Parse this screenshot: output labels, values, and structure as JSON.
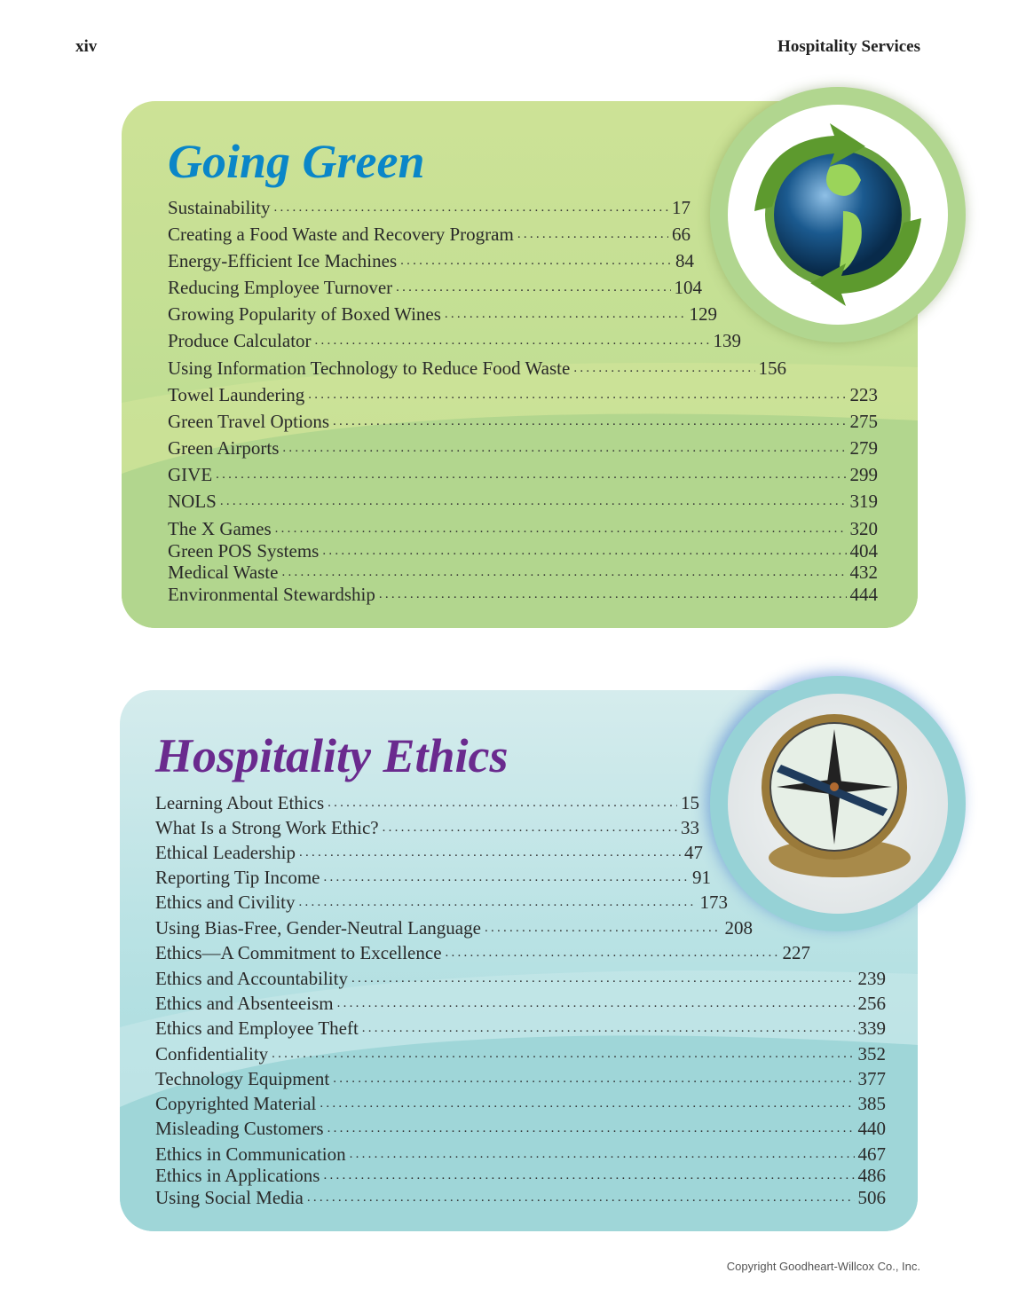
{
  "header": {
    "page_number": "xiv",
    "book_title": "Hospitality Services"
  },
  "going_green": {
    "title": "Going Green",
    "title_color": "#0a86c8",
    "image": "globe-with-recycling-arrows",
    "entries": [
      {
        "label": "Sustainability",
        "page": "17"
      },
      {
        "label": "Creating a Food Waste and Recovery Program",
        "page": "66"
      },
      {
        "label": "Energy-Efficient Ice Machines",
        "page": "84"
      },
      {
        "label": "Reducing Employee Turnover",
        "page": "104"
      },
      {
        "label": "Growing Popularity of Boxed Wines",
        "page": "129"
      },
      {
        "label": "Produce Calculator",
        "page": "139"
      },
      {
        "label": "Using Information Technology to Reduce Food Waste",
        "page": "156"
      },
      {
        "label": "Towel Laundering",
        "page": "223"
      },
      {
        "label": "Green Travel Options",
        "page": "275"
      },
      {
        "label": "Green Airports",
        "page": "279"
      },
      {
        "label": "GIVE",
        "page": "299"
      },
      {
        "label": "NOLS",
        "page": "319"
      },
      {
        "label": "The X Games",
        "page": "320"
      },
      {
        "label": "Green POS Systems",
        "page": "404"
      },
      {
        "label": "Medical Waste",
        "page": "432"
      },
      {
        "label": "Environmental Stewardship",
        "page": "444"
      }
    ]
  },
  "hospitality_ethics": {
    "title": "Hospitality Ethics",
    "title_color": "#6a2a8e",
    "image": "compass",
    "entries": [
      {
        "label": "Learning About Ethics",
        "page": "15"
      },
      {
        "label": "What Is a Strong Work Ethic?",
        "page": "33"
      },
      {
        "label": "Ethical Leadership",
        "page": "47"
      },
      {
        "label": "Reporting Tip Income",
        "page": "91"
      },
      {
        "label": "Ethics and Civility",
        "page": "173"
      },
      {
        "label": "Using Bias-Free, Gender-Neutral Language",
        "page": "208"
      },
      {
        "label": "Ethics—A Commitment to Excellence",
        "page": "227"
      },
      {
        "label": "Ethics and Accountability",
        "page": "239"
      },
      {
        "label": "Ethics and Absenteeism",
        "page": "256"
      },
      {
        "label": "Ethics and Employee Theft",
        "page": "339"
      },
      {
        "label": "Confidentiality",
        "page": "352"
      },
      {
        "label": "Technology Equipment",
        "page": "377"
      },
      {
        "label": "Copyrighted Material",
        "page": "385"
      },
      {
        "label": "Misleading Customers",
        "page": "440"
      },
      {
        "label": "Ethics in Communication",
        "page": "467"
      },
      {
        "label": "Ethics in Applications",
        "page": "486"
      },
      {
        "label": "Using Social Media",
        "page": "506"
      }
    ]
  },
  "footer": {
    "copyright": "Copyright Goodheart-Willcox Co., Inc."
  }
}
